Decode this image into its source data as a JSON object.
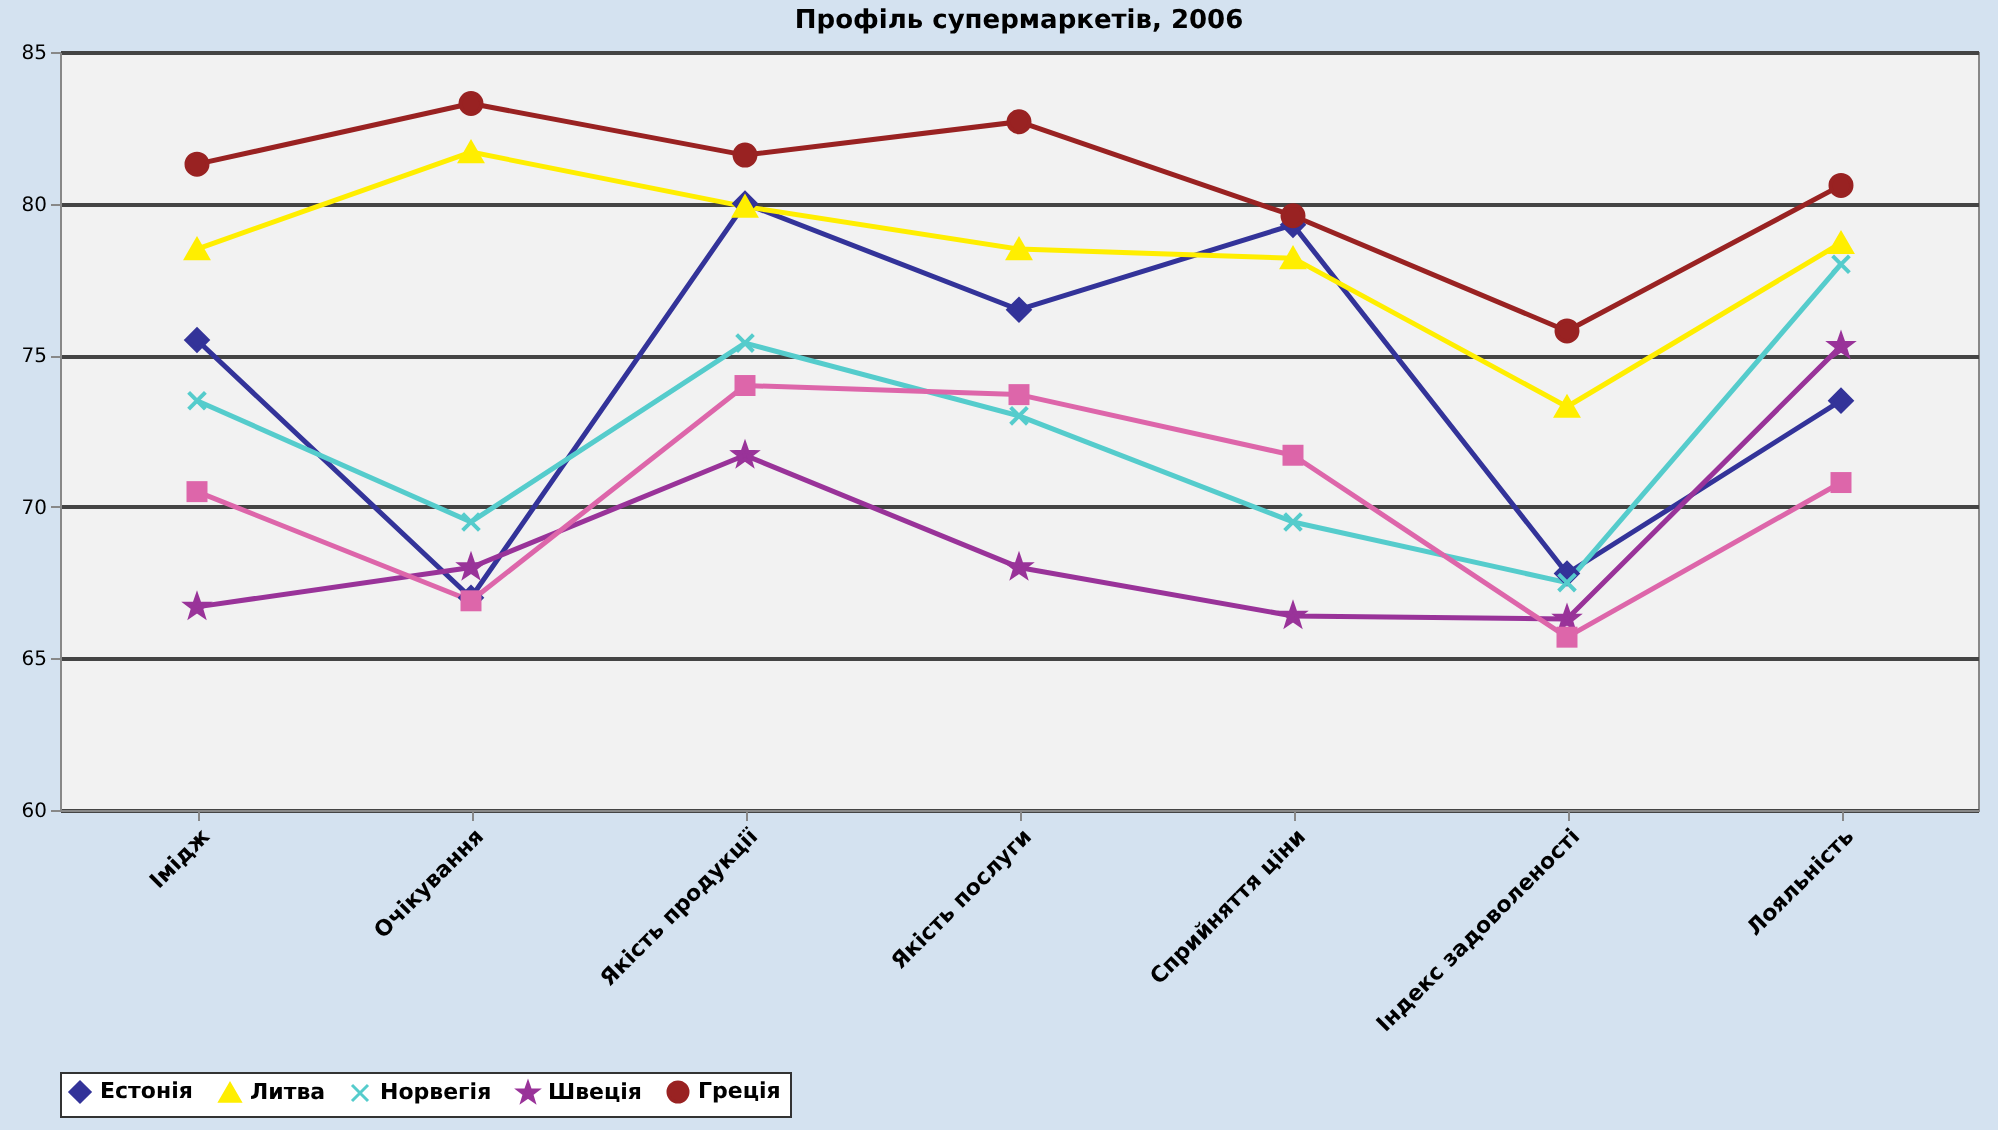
{
  "chart_data": {
    "type": "line",
    "title": "Профіль супермаркетів, 2006",
    "categories": [
      "Імідж",
      "Очікування",
      "Якість продукції",
      "Якість послуги",
      "Сприйняття ціни",
      "Індекс задоволеності",
      "Лояльність"
    ],
    "series": [
      {
        "name": "Естонія",
        "color": "#333399",
        "marker": "diamond",
        "values": [
          75.5,
          67.0,
          80.0,
          76.5,
          79.3,
          67.8,
          73.5
        ]
      },
      {
        "name": "Литва",
        "color": "#ffee00",
        "marker": "triangle",
        "values": [
          78.5,
          81.7,
          79.9,
          78.5,
          78.2,
          73.3,
          78.7
        ]
      },
      {
        "name": "Норвегія",
        "color": "#55cccc",
        "marker": "cross",
        "values": [
          73.5,
          69.5,
          75.4,
          73.0,
          69.5,
          67.5,
          78.0
        ]
      },
      {
        "name": "Швеція",
        "color": "#993399",
        "marker": "star",
        "values": [
          66.7,
          68.0,
          71.7,
          68.0,
          66.4,
          66.3,
          75.3
        ]
      },
      {
        "color": "#dd66aa",
        "marker": "square",
        "values": [
          70.5,
          66.9,
          74.0,
          73.7,
          71.7,
          65.7,
          70.8
        ]
      },
      {
        "name": "Греція",
        "color": "#992222",
        "marker": "circle",
        "values": [
          81.3,
          83.3,
          81.6,
          82.7,
          79.6,
          75.8,
          80.6
        ]
      }
    ],
    "ylim": [
      60,
      85
    ],
    "yticks": [
      60,
      65,
      70,
      75,
      80,
      85
    ],
    "grid": "y",
    "legend": "bottom",
    "line_style": "solid"
  }
}
